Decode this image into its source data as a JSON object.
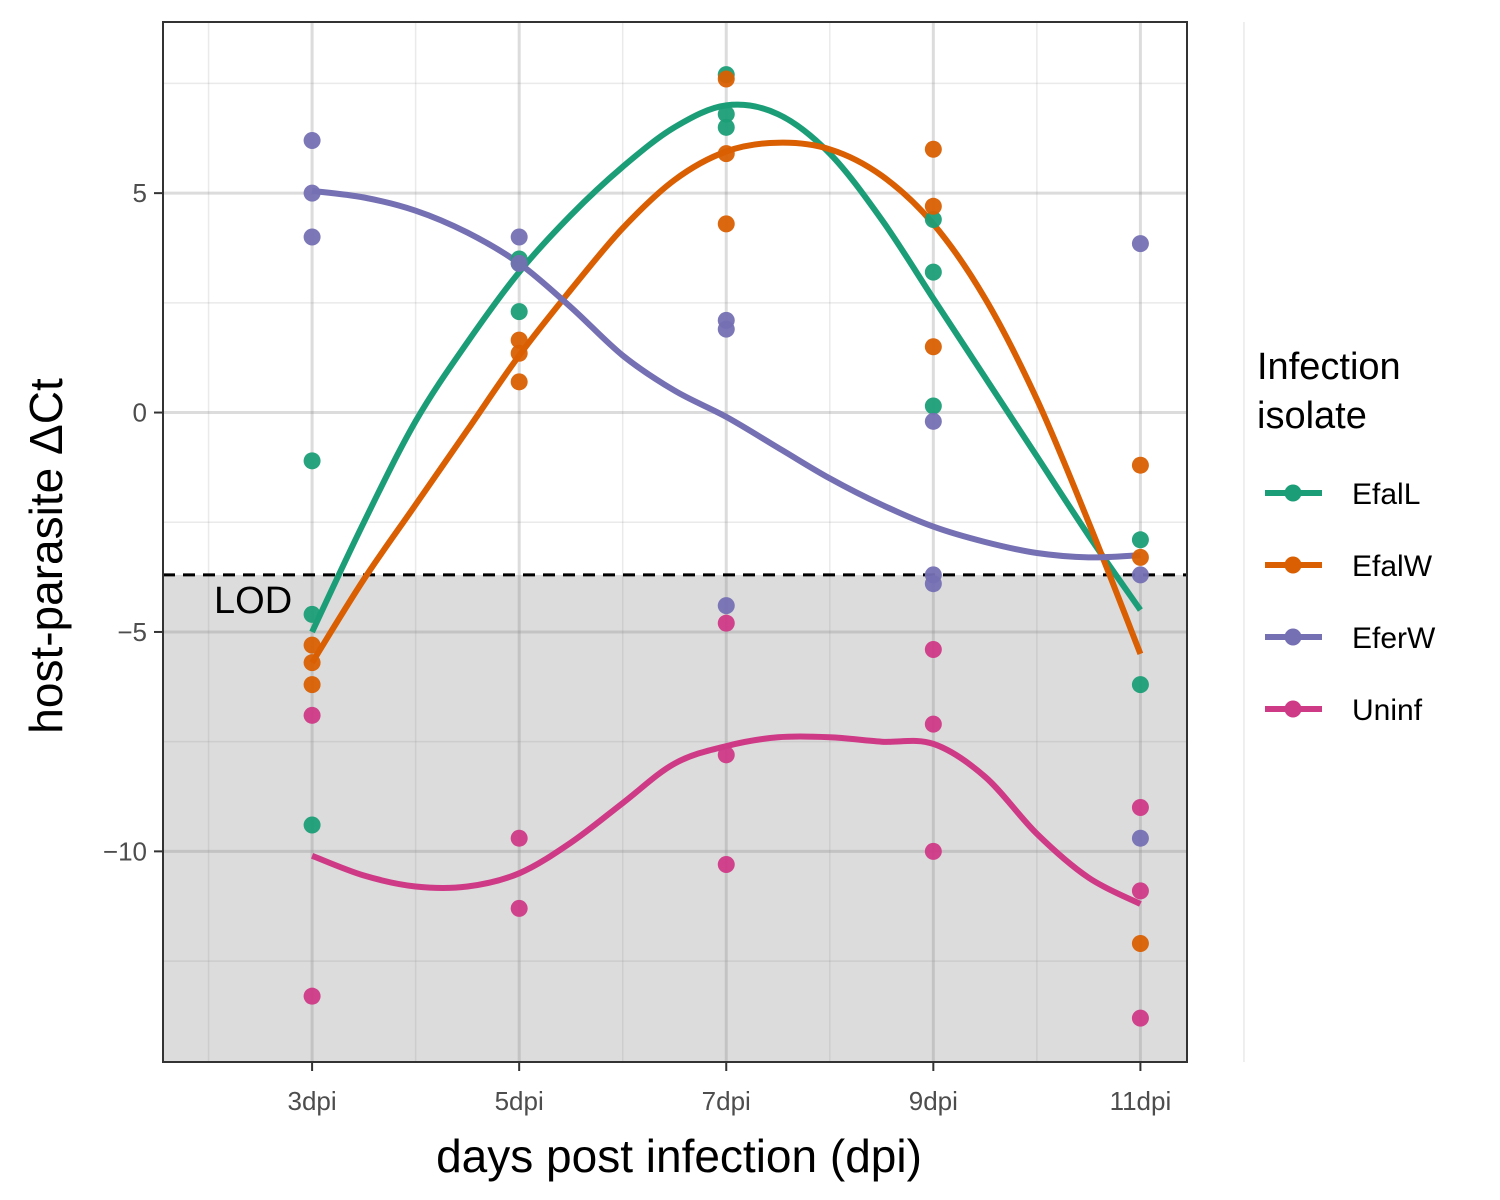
{
  "chart_data": {
    "type": "scatter",
    "xlabel": "days post infection (dpi)",
    "ylabel": "host-parasite  ΔCt",
    "categories": [
      "3dpi",
      "5dpi",
      "7dpi",
      "9dpi",
      "11dpi"
    ],
    "x_numeric": [
      3,
      5,
      7,
      9,
      11
    ],
    "xlim": [
      1.56,
      11.45
    ],
    "ylim": [
      -14.8,
      8.9
    ],
    "y_ticks": [
      5,
      0,
      -5,
      -10
    ],
    "y_tick_labels": [
      "5",
      "0",
      "−5",
      "−10"
    ],
    "grid": true,
    "lod": {
      "label": "LOD",
      "value": -3.7,
      "shade_below": true,
      "shade_color": "#dcdcdc"
    },
    "legend": {
      "title_line1": "Infection",
      "title_line2": "isolate",
      "position": "right"
    },
    "series": [
      {
        "name": "EfalL",
        "color": "#1b9e77",
        "points": [
          {
            "x": 3,
            "y": -1.1
          },
          {
            "x": 3,
            "y": -4.6
          },
          {
            "x": 3,
            "y": -9.4
          },
          {
            "x": 5,
            "y": 3.5
          },
          {
            "x": 5,
            "y": 3.4
          },
          {
            "x": 5,
            "y": 2.3
          },
          {
            "x": 7,
            "y": 7.7
          },
          {
            "x": 7,
            "y": 6.8
          },
          {
            "x": 7,
            "y": 6.5
          },
          {
            "x": 9,
            "y": 4.4
          },
          {
            "x": 9,
            "y": 3.2
          },
          {
            "x": 9,
            "y": 0.15
          },
          {
            "x": 11,
            "y": -2.9
          },
          {
            "x": 11,
            "y": -6.2
          }
        ],
        "smooth": [
          {
            "x": 3,
            "y": -5.0
          },
          {
            "x": 3.5,
            "y": -2.5
          },
          {
            "x": 4,
            "y": -0.2
          },
          {
            "x": 4.5,
            "y": 1.6
          },
          {
            "x": 5,
            "y": 3.2
          },
          {
            "x": 5.5,
            "y": 4.5
          },
          {
            "x": 6,
            "y": 5.6
          },
          {
            "x": 6.5,
            "y": 6.5
          },
          {
            "x": 7,
            "y": 7.0
          },
          {
            "x": 7.5,
            "y": 6.8
          },
          {
            "x": 8,
            "y": 5.9
          },
          {
            "x": 8.5,
            "y": 4.4
          },
          {
            "x": 9,
            "y": 2.6
          },
          {
            "x": 9.5,
            "y": 0.8
          },
          {
            "x": 10,
            "y": -1.0
          },
          {
            "x": 10.5,
            "y": -2.8
          },
          {
            "x": 11,
            "y": -4.5
          }
        ]
      },
      {
        "name": "EfalW",
        "color": "#d95f02",
        "points": [
          {
            "x": 3,
            "y": -5.3
          },
          {
            "x": 3,
            "y": -5.7
          },
          {
            "x": 3,
            "y": -6.2
          },
          {
            "x": 5,
            "y": 1.65
          },
          {
            "x": 5,
            "y": 1.35
          },
          {
            "x": 5,
            "y": 0.7
          },
          {
            "x": 7,
            "y": 7.6
          },
          {
            "x": 7,
            "y": 5.9
          },
          {
            "x": 7,
            "y": 4.3
          },
          {
            "x": 9,
            "y": 6.0
          },
          {
            "x": 9,
            "y": 4.7
          },
          {
            "x": 9,
            "y": 1.5
          },
          {
            "x": 11,
            "y": -1.2
          },
          {
            "x": 11,
            "y": -3.3
          },
          {
            "x": 11,
            "y": -12.1
          }
        ],
        "smooth": [
          {
            "x": 3,
            "y": -5.7
          },
          {
            "x": 3.5,
            "y": -3.8
          },
          {
            "x": 4,
            "y": -2.1
          },
          {
            "x": 4.5,
            "y": -0.4
          },
          {
            "x": 5,
            "y": 1.3
          },
          {
            "x": 5.5,
            "y": 2.8
          },
          {
            "x": 6,
            "y": 4.2
          },
          {
            "x": 6.5,
            "y": 5.3
          },
          {
            "x": 7,
            "y": 5.95
          },
          {
            "x": 7.5,
            "y": 6.15
          },
          {
            "x": 8,
            "y": 6.0
          },
          {
            "x": 8.5,
            "y": 5.4
          },
          {
            "x": 9,
            "y": 4.3
          },
          {
            "x": 9.5,
            "y": 2.6
          },
          {
            "x": 10,
            "y": 0.3
          },
          {
            "x": 10.5,
            "y": -2.5
          },
          {
            "x": 11,
            "y": -5.5
          }
        ]
      },
      {
        "name": "EferW",
        "color": "#7570b3",
        "points": [
          {
            "x": 3,
            "y": 6.2
          },
          {
            "x": 3,
            "y": 5.0
          },
          {
            "x": 3,
            "y": 4.0
          },
          {
            "x": 5,
            "y": 4.0
          },
          {
            "x": 5,
            "y": 3.4
          },
          {
            "x": 7,
            "y": 2.1
          },
          {
            "x": 7,
            "y": 1.9
          },
          {
            "x": 7,
            "y": -4.4
          },
          {
            "x": 9,
            "y": -0.2
          },
          {
            "x": 9,
            "y": -3.7
          },
          {
            "x": 9,
            "y": -3.9
          },
          {
            "x": 11,
            "y": 3.85
          },
          {
            "x": 11,
            "y": -3.7
          },
          {
            "x": 11,
            "y": -9.7
          }
        ],
        "smooth": [
          {
            "x": 3,
            "y": 5.05
          },
          {
            "x": 3.5,
            "y": 4.9
          },
          {
            "x": 4,
            "y": 4.6
          },
          {
            "x": 4.5,
            "y": 4.1
          },
          {
            "x": 5,
            "y": 3.4
          },
          {
            "x": 5.5,
            "y": 2.4
          },
          {
            "x": 6,
            "y": 1.3
          },
          {
            "x": 6.5,
            "y": 0.5
          },
          {
            "x": 7,
            "y": -0.1
          },
          {
            "x": 7.5,
            "y": -0.8
          },
          {
            "x": 8,
            "y": -1.5
          },
          {
            "x": 8.5,
            "y": -2.1
          },
          {
            "x": 9,
            "y": -2.6
          },
          {
            "x": 9.5,
            "y": -2.95
          },
          {
            "x": 10,
            "y": -3.2
          },
          {
            "x": 10.5,
            "y": -3.3
          },
          {
            "x": 11,
            "y": -3.25
          }
        ]
      },
      {
        "name": "Uninf",
        "color": "#cf3a87",
        "points": [
          {
            "x": 3,
            "y": -6.9
          },
          {
            "x": 3,
            "y": -13.3
          },
          {
            "x": 5,
            "y": -9.7
          },
          {
            "x": 5,
            "y": -11.3
          },
          {
            "x": 7,
            "y": -4.8
          },
          {
            "x": 7,
            "y": -7.8
          },
          {
            "x": 7,
            "y": -10.3
          },
          {
            "x": 9,
            "y": -5.4
          },
          {
            "x": 9,
            "y": -7.1
          },
          {
            "x": 9,
            "y": -10.0
          },
          {
            "x": 11,
            "y": -9.0
          },
          {
            "x": 11,
            "y": -10.9
          },
          {
            "x": 11,
            "y": -13.8
          }
        ],
        "smooth": [
          {
            "x": 3,
            "y": -10.1
          },
          {
            "x": 3.5,
            "y": -10.55
          },
          {
            "x": 4,
            "y": -10.8
          },
          {
            "x": 4.5,
            "y": -10.8
          },
          {
            "x": 5,
            "y": -10.5
          },
          {
            "x": 5.5,
            "y": -9.8
          },
          {
            "x": 6,
            "y": -8.9
          },
          {
            "x": 6.5,
            "y": -8.0
          },
          {
            "x": 7,
            "y": -7.6
          },
          {
            "x": 7.5,
            "y": -7.4
          },
          {
            "x": 8,
            "y": -7.4
          },
          {
            "x": 8.5,
            "y": -7.5
          },
          {
            "x": 9,
            "y": -7.55
          },
          {
            "x": 9.5,
            "y": -8.3
          },
          {
            "x": 10,
            "y": -9.6
          },
          {
            "x": 10.5,
            "y": -10.6
          },
          {
            "x": 11,
            "y": -11.2
          }
        ]
      }
    ]
  }
}
